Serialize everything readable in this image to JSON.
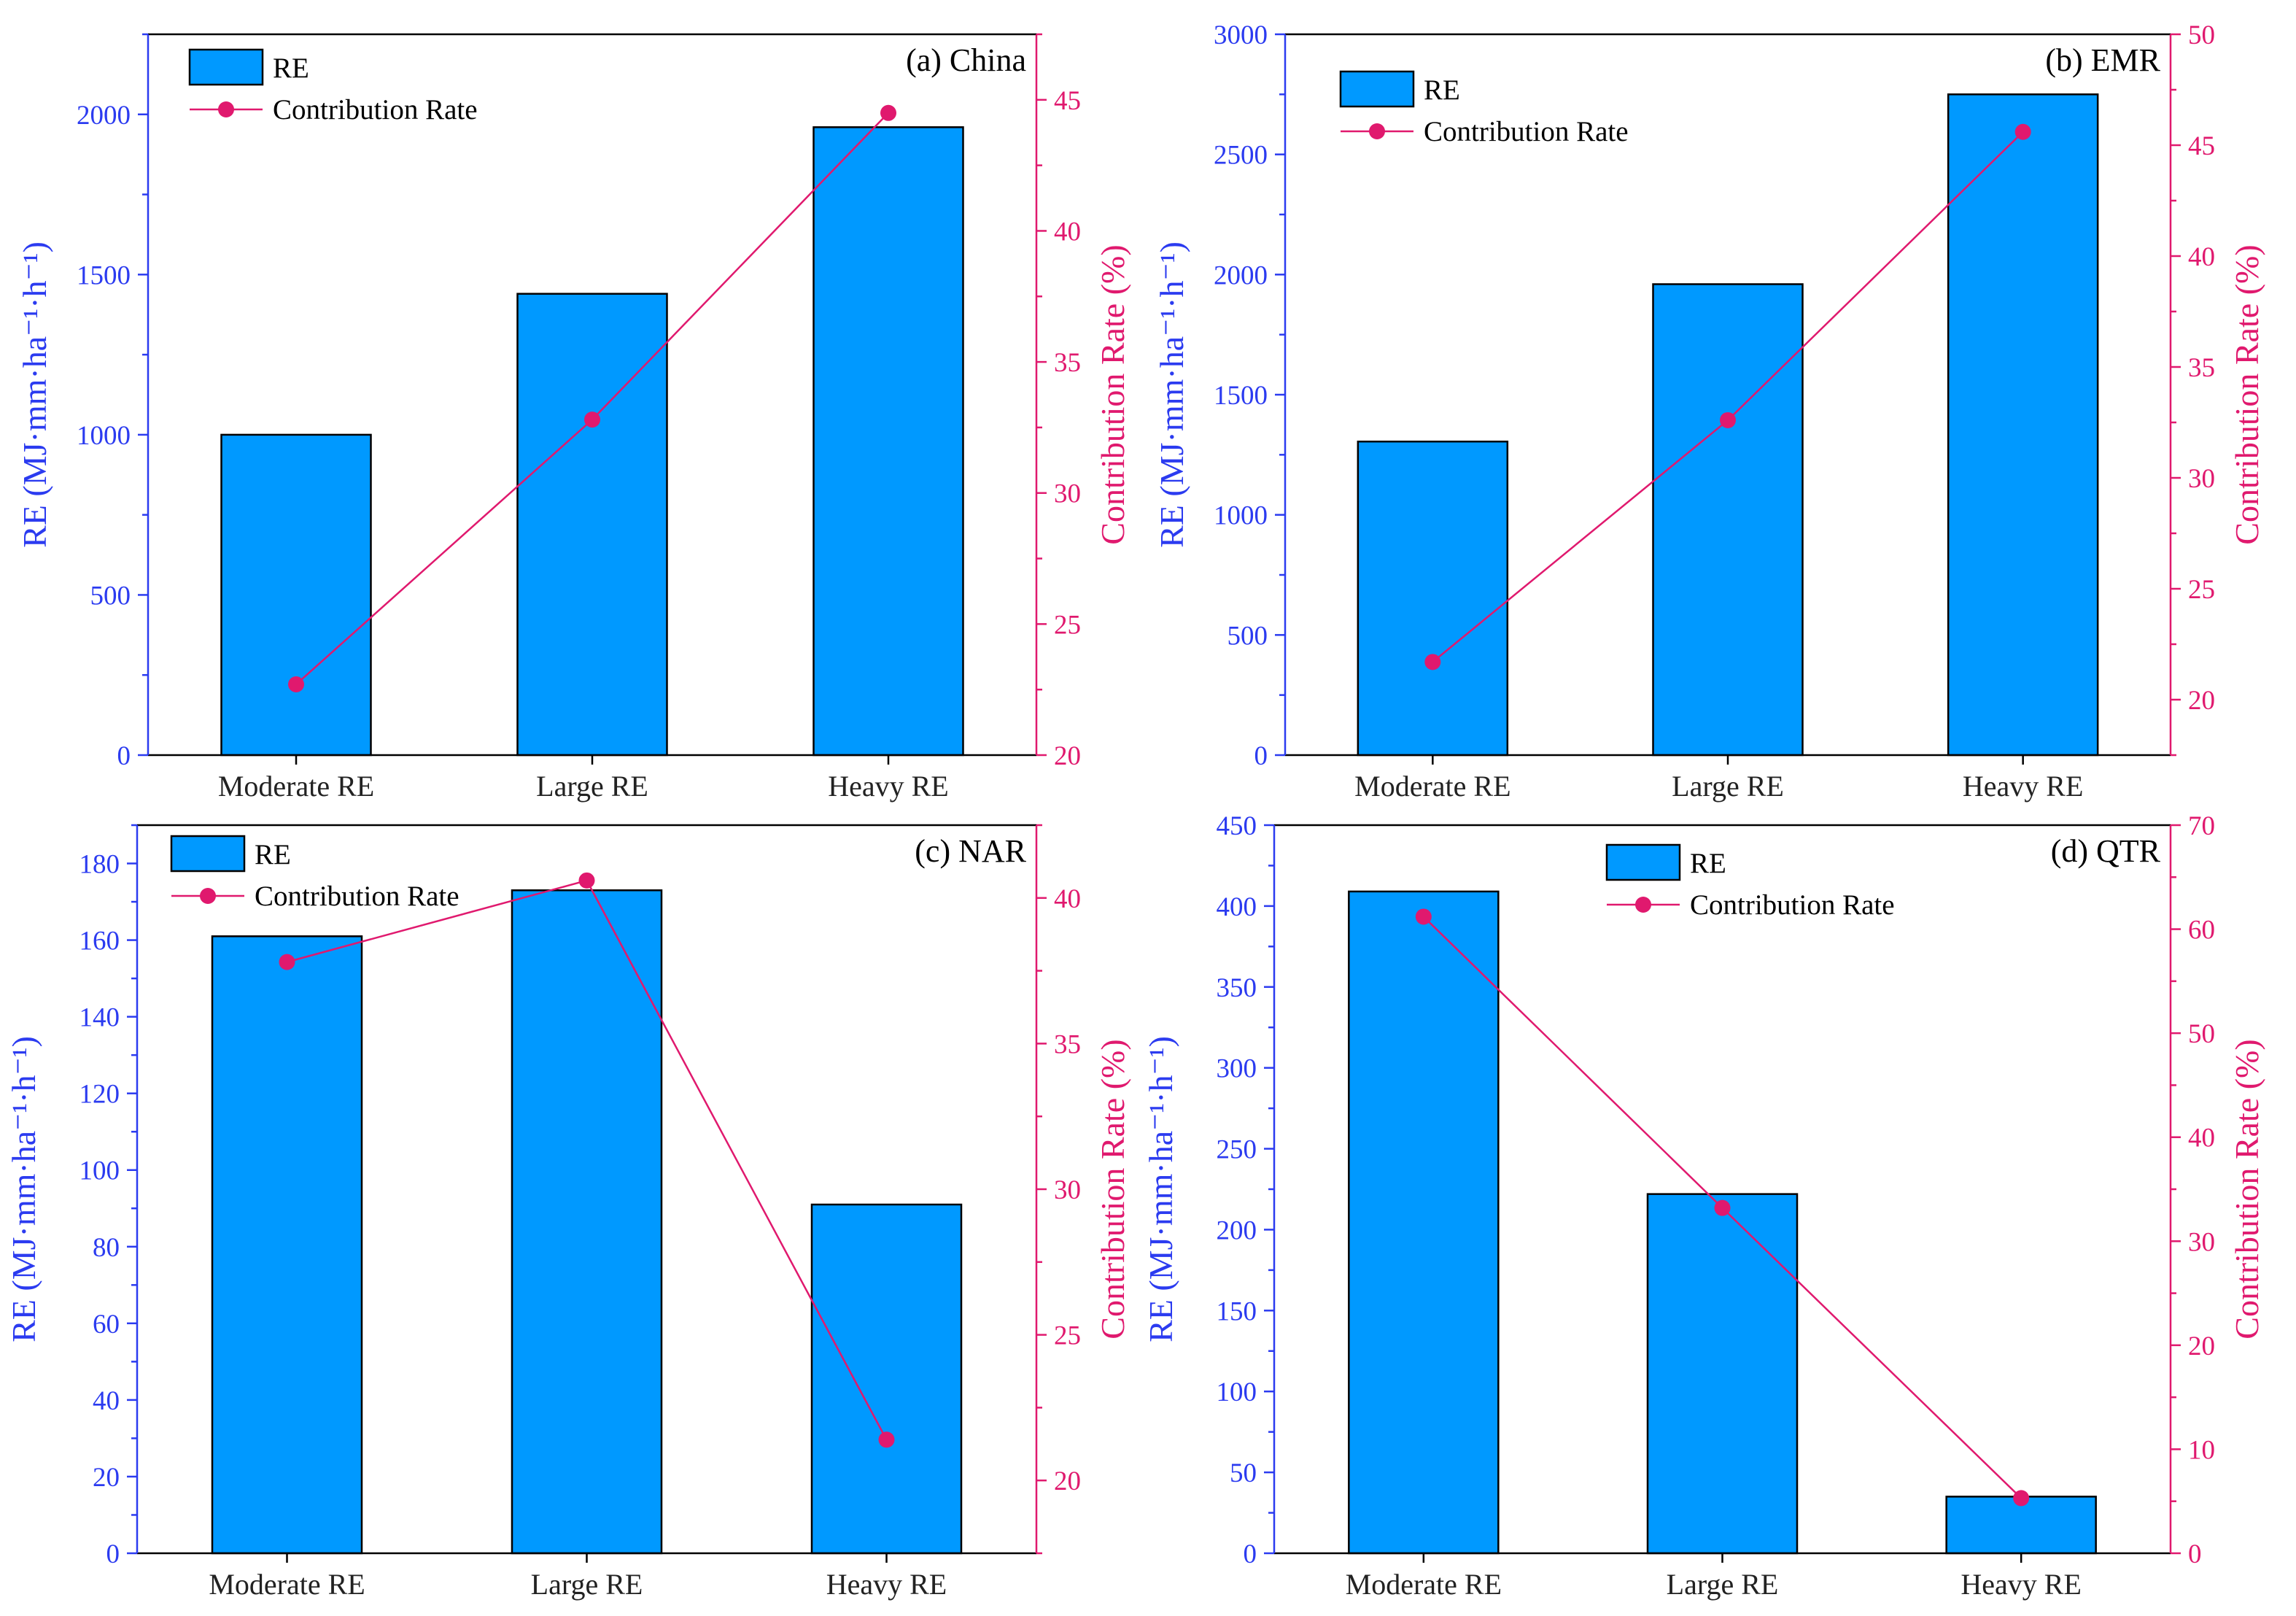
{
  "colors": {
    "bar": "#0099ff",
    "bar_stroke": "#000000",
    "line": "#e0196e",
    "left_axis": "#2b3bf0",
    "right_axis": "#e0196e"
  },
  "legend": {
    "bar_label": "RE",
    "line_label": "Contribution Rate"
  },
  "chart_data": [
    {
      "type": "bar",
      "title": "(a) China",
      "categories": [
        "Moderate RE",
        "Large RE",
        "Heavy RE"
      ],
      "series": [
        {
          "name": "RE",
          "axis": "left",
          "values": [
            1000,
            1440,
            1960
          ]
        },
        {
          "name": "Contribution Rate",
          "axis": "right",
          "type": "line",
          "values": [
            22.7,
            32.8,
            44.5
          ]
        }
      ],
      "ylabel": "RE (MJ·mm·ha⁻¹·h⁻¹)",
      "y2label": "Contribution Rate (%)",
      "ylim": [
        0,
        2250
      ],
      "y2lim": [
        20,
        47.5
      ],
      "yticks": [
        0,
        500,
        1000,
        1500,
        2000
      ],
      "y2ticks": [
        20,
        25,
        30,
        35,
        40,
        45
      ],
      "legend_position": "top-left"
    },
    {
      "type": "bar",
      "title": "(b) EMR",
      "categories": [
        "Moderate RE",
        "Large RE",
        "Heavy RE"
      ],
      "series": [
        {
          "name": "RE",
          "axis": "left",
          "values": [
            1305,
            1960,
            2750
          ]
        },
        {
          "name": "Contribution Rate",
          "axis": "right",
          "type": "line",
          "values": [
            21.7,
            32.6,
            45.6
          ]
        }
      ],
      "ylabel": "RE (MJ·mm·ha⁻¹·h⁻¹)",
      "y2label": "Contribution Rate (%)",
      "ylim": [
        0,
        3000
      ],
      "y2lim": [
        17.5,
        50
      ],
      "yticks": [
        0,
        500,
        1000,
        1500,
        2000,
        2500,
        3000
      ],
      "y2ticks": [
        20,
        25,
        30,
        35,
        40,
        45,
        50
      ],
      "legend_position": "top-left"
    },
    {
      "type": "bar",
      "title": "(c) NAR",
      "categories": [
        "Moderate RE",
        "Large RE",
        "Heavy RE"
      ],
      "series": [
        {
          "name": "RE",
          "axis": "left",
          "values": [
            161,
            173,
            91
          ]
        },
        {
          "name": "Contribution Rate",
          "axis": "right",
          "type": "line",
          "values": [
            37.8,
            40.6,
            21.4
          ]
        }
      ],
      "ylabel": "RE (MJ·mm·ha⁻¹·h⁻¹)",
      "y2label": "Contribution Rate (%)",
      "ylim": [
        0,
        190
      ],
      "y2lim": [
        17.5,
        42.5
      ],
      "yticks": [
        0,
        20,
        40,
        60,
        80,
        100,
        120,
        140,
        160,
        180
      ],
      "y2ticks": [
        20,
        25,
        30,
        35,
        40
      ],
      "legend_position": "top-left"
    },
    {
      "type": "bar",
      "title": "(d) QTR",
      "categories": [
        "Moderate RE",
        "Large RE",
        "Heavy RE"
      ],
      "series": [
        {
          "name": "RE",
          "axis": "left",
          "values": [
            409,
            222,
            35
          ]
        },
        {
          "name": "Contribution Rate",
          "axis": "right",
          "type": "line",
          "values": [
            61.2,
            33.2,
            5.3
          ]
        }
      ],
      "ylabel": "RE (MJ·mm·ha⁻¹·h⁻¹)",
      "y2label": "Contribution Rate (%)",
      "ylim": [
        0,
        450
      ],
      "y2lim": [
        0,
        70
      ],
      "yticks": [
        0,
        50,
        100,
        150,
        200,
        250,
        300,
        350,
        400,
        450
      ],
      "y2ticks": [
        0,
        10,
        20,
        30,
        40,
        50,
        60,
        70
      ],
      "legend_position": "top-center"
    }
  ]
}
